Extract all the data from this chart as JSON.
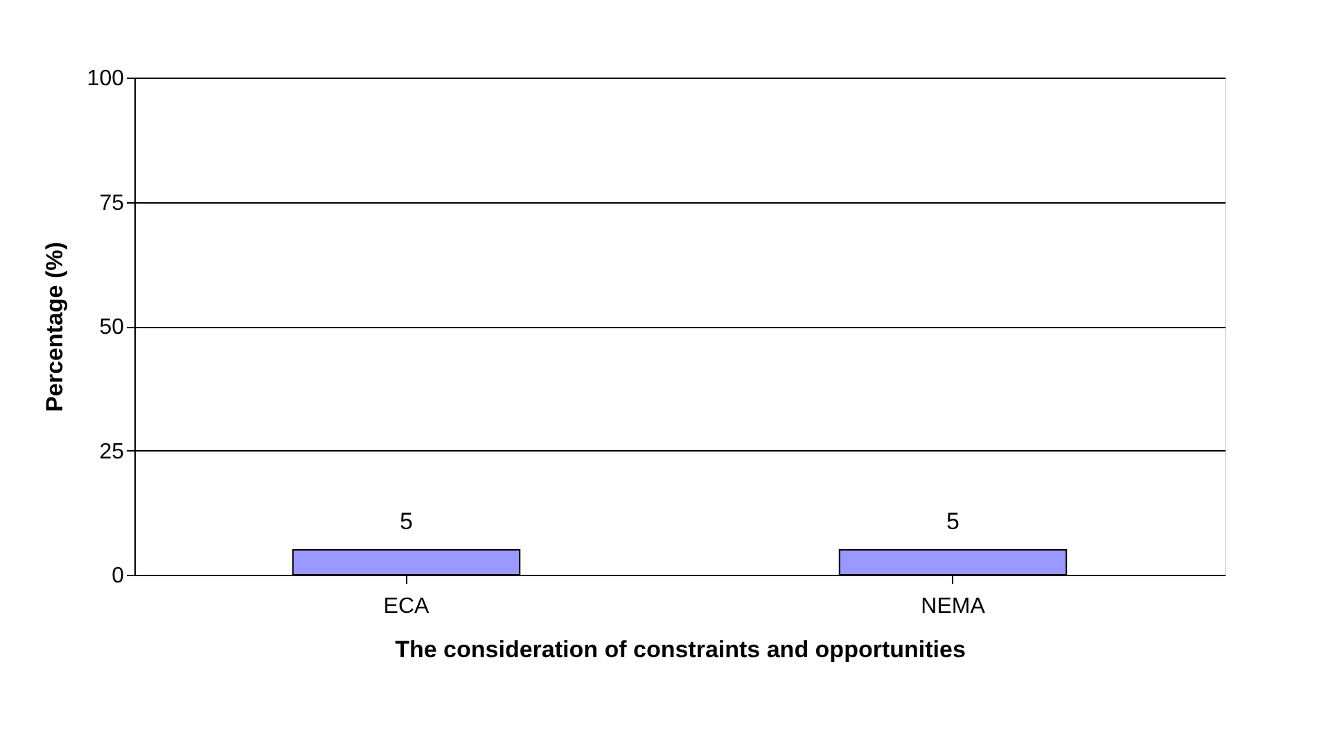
{
  "chart_data": {
    "type": "bar",
    "xlabel": "The consideration of constraints and opportunities",
    "ylabel": "Percentage (%)",
    "categories": [
      "ECA",
      "NEMA"
    ],
    "series": [
      {
        "color": "#9999ff",
        "values": [
          5,
          5
        ]
      }
    ],
    "ylim": [
      0,
      100
    ],
    "yticks": [
      0,
      25,
      50,
      75,
      100
    ],
    "grid": "y",
    "data_labels": true,
    "legend": false
  }
}
